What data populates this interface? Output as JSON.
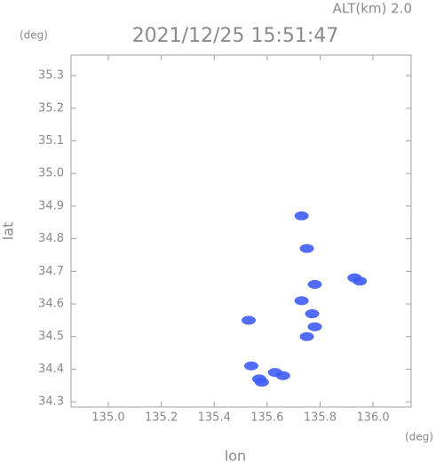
{
  "chart_data": {
    "type": "scatter",
    "title": "2021/12/25 15:51:47",
    "annotation": "ALT(km) 2.0",
    "y_unit": "(deg)",
    "x_unit": "(deg)",
    "xlabel": "lon",
    "ylabel": "lat",
    "color": "#3f5cf5",
    "x": [
      135.73,
      135.75,
      135.78,
      135.73,
      135.77,
      135.78,
      135.75,
      135.93,
      135.95,
      135.54,
      135.57,
      135.58,
      135.63,
      135.66,
      135.53
    ],
    "values": [
      34.87,
      34.77,
      34.66,
      34.61,
      34.57,
      34.53,
      34.5,
      34.68,
      34.67,
      34.41,
      34.37,
      34.36,
      34.39,
      34.38,
      34.55
    ],
    "xlim": [
      134.859,
      136.144
    ],
    "ylim": [
      34.284,
      35.363
    ],
    "xticks": [
      {
        "value": 135,
        "label": "135.0"
      },
      135.2,
      135.4,
      135.6,
      135.8,
      {
        "value": 136,
        "label": "136.0"
      }
    ],
    "yticks": [
      34.3,
      34.4,
      34.5,
      34.6,
      34.7,
      34.8,
      34.9,
      {
        "value": 35,
        "label": "35.0"
      },
      35.1,
      35.2,
      35.3
    ],
    "grid": false
  }
}
